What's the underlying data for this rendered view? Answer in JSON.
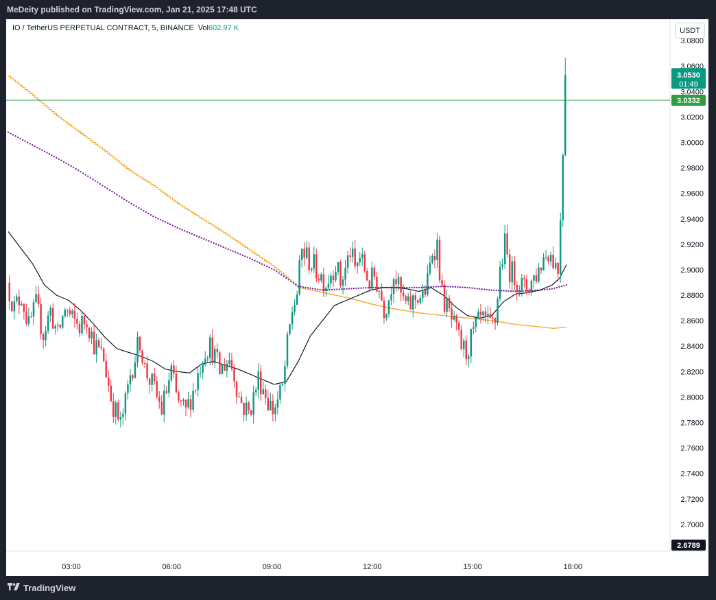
{
  "header": {
    "publisher_text": "MeDeity published on TradingView.com, Jan 21, 2025 17:48 UTC"
  },
  "symbol": {
    "title": "IO / TetherUS PERPETUAL CONTRACT, 5, BINANCE",
    "vol_label": "Vol",
    "vol_value": "602.97 K"
  },
  "currency_button": "USDT",
  "footer": {
    "brand": "TradingView"
  },
  "colors": {
    "up": "#089981",
    "down": "#f23645",
    "ma_short": "#131722",
    "ma_mid": "#7b1fa2",
    "ma_long": "#f5a623",
    "hline": "#2e9e3e"
  },
  "chart_data": {
    "type": "candlestick",
    "timeframe": "5",
    "x_ticks": [
      "03:00",
      "06:00",
      "09:00",
      "12:00",
      "15:00",
      "18:00"
    ],
    "y_ticks": [
      "3.0800",
      "3.0600",
      "3.0400",
      "3.0200",
      "3.0000",
      "2.9800",
      "2.9600",
      "2.9400",
      "2.9200",
      "2.9000",
      "2.8800",
      "2.8600",
      "2.8400",
      "2.8200",
      "2.8000",
      "2.7800",
      "2.7600",
      "2.7400",
      "2.7200",
      "2.7000"
    ],
    "ylim": [
      2.6789,
      3.0968
    ],
    "price_labels": {
      "last_price": "3.0530",
      "countdown": "01:49",
      "horizontal_line": "3.0332",
      "axis_bottom": "2.6789"
    },
    "horizontal_line_value": 3.0332,
    "candle_anchors": [
      [
        0,
        2.89
      ],
      [
        3,
        2.87
      ],
      [
        6,
        2.88
      ],
      [
        9,
        2.855
      ],
      [
        12,
        2.872
      ],
      [
        15,
        2.85
      ],
      [
        18,
        2.868
      ],
      [
        21,
        2.848
      ],
      [
        24,
        2.87
      ],
      [
        27,
        2.86
      ],
      [
        30,
        2.856
      ],
      [
        33,
        2.862
      ],
      [
        36,
        2.842
      ],
      [
        40,
        2.83
      ],
      [
        43,
        2.8
      ],
      [
        45,
        2.788
      ],
      [
        47,
        2.778
      ],
      [
        49,
        2.795
      ],
      [
        51,
        2.818
      ],
      [
        53,
        2.832
      ],
      [
        55,
        2.845
      ],
      [
        57,
        2.822
      ],
      [
        60,
        2.81
      ],
      [
        62,
        2.8
      ],
      [
        64,
        2.79
      ],
      [
        66,
        2.805
      ],
      [
        68,
        2.82
      ],
      [
        70,
        2.8
      ],
      [
        72,
        2.792
      ],
      [
        74,
        2.788
      ],
      [
        76,
        2.8
      ],
      [
        78,
        2.81
      ],
      [
        80,
        2.826
      ],
      [
        82,
        2.838
      ],
      [
        84,
        2.84
      ],
      [
        86,
        2.832
      ],
      [
        88,
        2.82
      ],
      [
        90,
        2.826
      ],
      [
        92,
        2.83
      ],
      [
        94,
        2.818
      ],
      [
        96,
        2.8
      ],
      [
        98,
        2.792
      ],
      [
        100,
        2.788
      ],
      [
        102,
        2.8
      ],
      [
        104,
        2.815
      ],
      [
        106,
        2.808
      ],
      [
        108,
        2.797
      ],
      [
        110,
        2.79
      ],
      [
        112,
        2.797
      ],
      [
        114,
        2.807
      ],
      [
        116,
        2.84
      ],
      [
        118,
        2.868
      ],
      [
        120,
        2.882
      ],
      [
        122,
        2.915
      ],
      [
        124,
        2.91
      ],
      [
        126,
        2.905
      ],
      [
        128,
        2.9
      ],
      [
        130,
        2.895
      ],
      [
        132,
        2.89
      ],
      [
        134,
        2.898
      ],
      [
        136,
        2.905
      ],
      [
        138,
        2.89
      ],
      [
        140,
        2.9
      ],
      [
        142,
        2.915
      ],
      [
        144,
        2.9
      ],
      [
        146,
        2.91
      ],
      [
        148,
        2.9
      ],
      [
        150,
        2.89
      ],
      [
        152,
        2.895
      ],
      [
        154,
        2.885
      ],
      [
        156,
        2.87
      ],
      [
        158,
        2.878
      ],
      [
        160,
        2.9
      ],
      [
        162,
        2.885
      ],
      [
        164,
        2.875
      ],
      [
        166,
        2.87
      ],
      [
        168,
        2.875
      ],
      [
        170,
        2.88
      ],
      [
        172,
        2.878
      ],
      [
        174,
        2.89
      ],
      [
        176,
        2.915
      ],
      [
        178,
        2.92
      ],
      [
        180,
        2.88
      ],
      [
        182,
        2.87
      ],
      [
        184,
        2.86
      ],
      [
        186,
        2.85
      ],
      [
        188,
        2.84
      ],
      [
        190,
        2.835
      ],
      [
        192,
        2.845
      ],
      [
        194,
        2.855
      ],
      [
        196,
        2.86
      ],
      [
        198,
        2.858
      ],
      [
        200,
        2.855
      ],
      [
        202,
        2.86
      ],
      [
        204,
        2.9
      ],
      [
        206,
        2.92
      ],
      [
        208,
        2.9
      ],
      [
        210,
        2.895
      ],
      [
        212,
        2.89
      ],
      [
        214,
        2.885
      ],
      [
        216,
        2.888
      ],
      [
        218,
        2.894
      ],
      [
        220,
        2.9
      ],
      [
        222,
        2.91
      ],
      [
        224,
        2.915
      ],
      [
        226,
        2.908
      ],
      [
        228,
        2.9
      ],
      [
        230,
        2.99
      ],
      [
        231,
        3.053
      ]
    ],
    "series": [
      {
        "name": "",
        "type": "ema_short",
        "values": [
          [
            0,
            2.93
          ],
          [
            10,
            2.905
          ],
          [
            15,
            2.888
          ],
          [
            20,
            2.88
          ],
          [
            25,
            2.876
          ],
          [
            30,
            2.868
          ],
          [
            35,
            2.858
          ],
          [
            40,
            2.847
          ],
          [
            45,
            2.838
          ],
          [
            50,
            2.835
          ],
          [
            55,
            2.832
          ],
          [
            60,
            2.828
          ],
          [
            65,
            2.822
          ],
          [
            70,
            2.82
          ],
          [
            75,
            2.819
          ],
          [
            80,
            2.826
          ],
          [
            85,
            2.828
          ],
          [
            90,
            2.825
          ],
          [
            95,
            2.822
          ],
          [
            100,
            2.818
          ],
          [
            105,
            2.814
          ],
          [
            110,
            2.81
          ],
          [
            115,
            2.812
          ],
          [
            120,
            2.828
          ],
          [
            125,
            2.848
          ],
          [
            130,
            2.86
          ],
          [
            135,
            2.872
          ],
          [
            140,
            2.876
          ],
          [
            145,
            2.88
          ],
          [
            150,
            2.884
          ],
          [
            155,
            2.886
          ],
          [
            160,
            2.886
          ],
          [
            165,
            2.885
          ],
          [
            170,
            2.883
          ],
          [
            175,
            2.886
          ],
          [
            180,
            2.88
          ],
          [
            185,
            2.871
          ],
          [
            190,
            2.864
          ],
          [
            195,
            2.862
          ],
          [
            200,
            2.864
          ],
          [
            205,
            2.875
          ],
          [
            210,
            2.881
          ],
          [
            215,
            2.882
          ],
          [
            220,
            2.884
          ],
          [
            225,
            2.888
          ],
          [
            228,
            2.893
          ],
          [
            231,
            2.904
          ]
        ]
      },
      {
        "name": "",
        "type": "ma_mid",
        "values": [
          [
            0,
            3.008
          ],
          [
            10,
            2.998
          ],
          [
            20,
            2.988
          ],
          [
            30,
            2.977
          ],
          [
            40,
            2.965
          ],
          [
            50,
            2.953
          ],
          [
            60,
            2.942
          ],
          [
            70,
            2.933
          ],
          [
            80,
            2.925
          ],
          [
            90,
            2.917
          ],
          [
            100,
            2.909
          ],
          [
            110,
            2.9
          ],
          [
            120,
            2.887
          ],
          [
            130,
            2.884
          ],
          [
            140,
            2.885
          ],
          [
            150,
            2.886
          ],
          [
            160,
            2.886
          ],
          [
            170,
            2.886
          ],
          [
            180,
            2.887
          ],
          [
            190,
            2.886
          ],
          [
            200,
            2.884
          ],
          [
            210,
            2.883
          ],
          [
            220,
            2.884
          ],
          [
            225,
            2.885
          ],
          [
            231,
            2.888
          ]
        ]
      },
      {
        "name": "",
        "type": "ma_long",
        "values": [
          [
            0,
            3.052
          ],
          [
            10,
            3.037
          ],
          [
            20,
            3.021
          ],
          [
            30,
            3.007
          ],
          [
            40,
            2.993
          ],
          [
            50,
            2.978
          ],
          [
            60,
            2.966
          ],
          [
            70,
            2.952
          ],
          [
            80,
            2.94
          ],
          [
            90,
            2.928
          ],
          [
            100,
            2.915
          ],
          [
            110,
            2.902
          ],
          [
            120,
            2.886
          ],
          [
            130,
            2.882
          ],
          [
            140,
            2.878
          ],
          [
            150,
            2.873
          ],
          [
            160,
            2.869
          ],
          [
            170,
            2.866
          ],
          [
            180,
            2.864
          ],
          [
            190,
            2.862
          ],
          [
            200,
            2.86
          ],
          [
            210,
            2.857
          ],
          [
            220,
            2.855
          ],
          [
            225,
            2.854
          ],
          [
            231,
            2.855
          ]
        ]
      }
    ]
  }
}
